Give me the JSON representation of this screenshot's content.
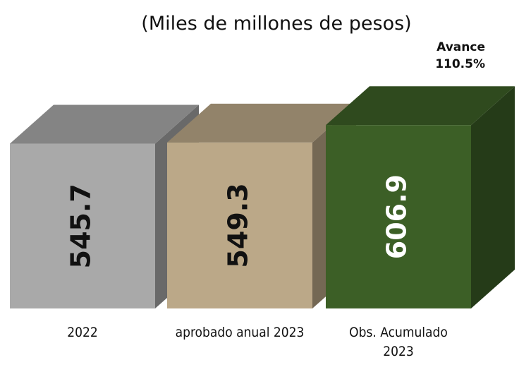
{
  "chart_data": {
    "type": "bar3d",
    "title": "(Miles de millones de pesos)",
    "annotation": "Avance 110.5%",
    "categories": [
      "2022",
      "aprobado anual 2023",
      "Obs. Acumulado 2023"
    ],
    "values": [
      545.7,
      549.3,
      606.9
    ],
    "colors": [
      "#a9a9a9",
      "#bba888",
      "#3c5f26"
    ],
    "label_colors": [
      "#111111",
      "#111111",
      "#ffffff"
    ]
  }
}
